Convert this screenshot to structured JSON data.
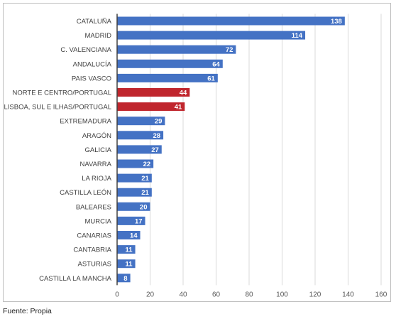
{
  "chart_data": {
    "type": "bar",
    "orientation": "horizontal",
    "categories": [
      "CATALUÑA",
      "MADRID",
      "C. VALENCIANA",
      "ANDALUCÍA",
      "PAIS VASCO",
      "NORTE E CENTRO/PORTUGAL",
      "LISBOA, SUL E ILHAS/PORTUGAL",
      "EXTREMADURA",
      "ARAGÓN",
      "GALICIA",
      "NAVARRA",
      "LA RIOJA",
      "CASTILLA LEÓN",
      "BALEARES",
      "MURCIA",
      "CANARIAS",
      "CANTABRIA",
      "ASTURIAS",
      "CASTILLA LA MANCHA"
    ],
    "values": [
      138,
      114,
      72,
      64,
      61,
      44,
      41,
      29,
      28,
      27,
      22,
      21,
      21,
      20,
      17,
      14,
      11,
      11,
      8
    ],
    "highlighted": [
      "NORTE E CENTRO/PORTUGAL",
      "LISBOA, SUL E ILHAS/PORTUGAL"
    ],
    "colors": {
      "default": "#4472c4",
      "highlight": "#c0262d"
    },
    "xlim": [
      0,
      160
    ],
    "xticks": [
      0,
      20,
      40,
      60,
      80,
      100,
      120,
      140,
      160
    ],
    "grid": "vertical",
    "data_labels": true,
    "title": "",
    "xlabel": "",
    "ylabel": ""
  },
  "source_note": "Fuente: Propia"
}
